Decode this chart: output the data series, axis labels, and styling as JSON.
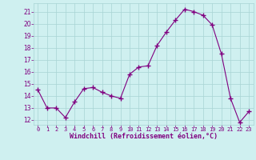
{
  "x": [
    0,
    1,
    2,
    3,
    4,
    5,
    6,
    7,
    8,
    9,
    10,
    11,
    12,
    13,
    14,
    15,
    16,
    17,
    18,
    19,
    20,
    21,
    22,
    23
  ],
  "y": [
    14.5,
    13.0,
    13.0,
    12.2,
    13.5,
    14.6,
    14.7,
    14.3,
    14.0,
    13.8,
    15.8,
    16.4,
    16.5,
    18.2,
    19.3,
    20.3,
    21.2,
    21.0,
    20.7,
    19.9,
    17.5,
    13.8,
    11.8,
    12.7
  ],
  "line_color": "#800080",
  "marker": "+",
  "marker_size": 4,
  "bg_color": "#cff0f0",
  "grid_color": "#a8d4d4",
  "xlabel": "Windchill (Refroidissement éolien,°C)",
  "xlabel_color": "#800080",
  "tick_color": "#800080",
  "ylabel_ticks": [
    12,
    13,
    14,
    15,
    16,
    17,
    18,
    19,
    20,
    21
  ],
  "xlim": [
    -0.5,
    23.5
  ],
  "ylim": [
    11.6,
    21.7
  ]
}
